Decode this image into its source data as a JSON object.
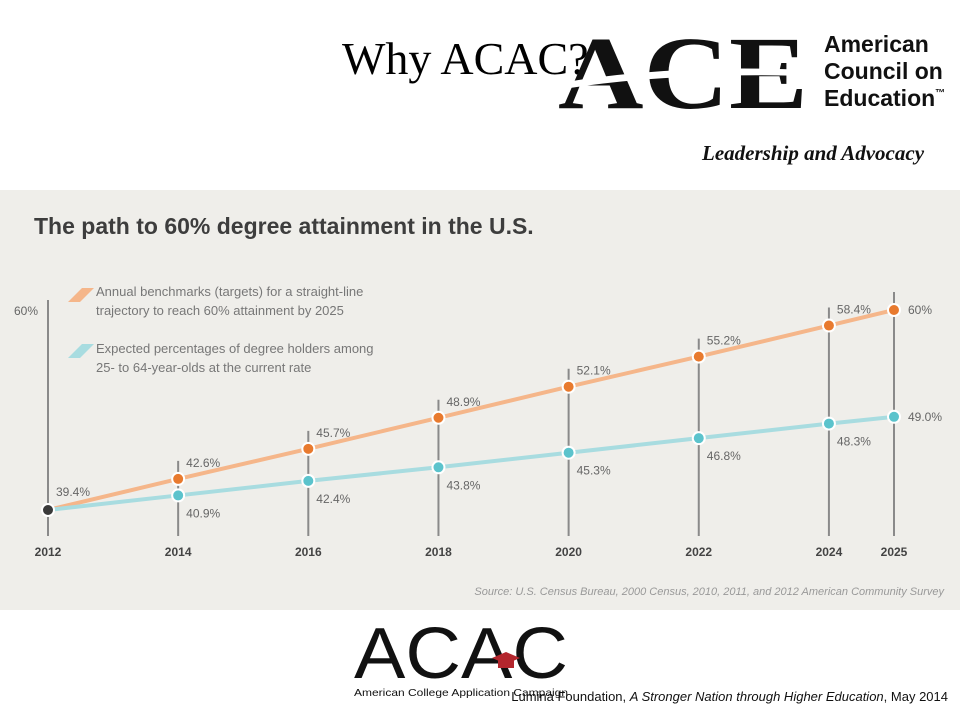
{
  "slide": {
    "title": "Why ACAC?",
    "citation_prefix": "Lumina Foundation, ",
    "citation_title": "A Stronger Nation through Higher Education",
    "citation_suffix": ", May 2014"
  },
  "ace_logo": {
    "mark": "ACE",
    "line1": "American",
    "line2": "Council on",
    "line3": "Education",
    "tm": "™",
    "tagline": "Leadership and Advocacy"
  },
  "acac_logo": {
    "mark": "ACAC",
    "name": "American College Application Campaign"
  },
  "colors": {
    "orange": "#f5b68a",
    "orange_dot": "#e87a2e",
    "blue": "#a8dce0",
    "blue_dot": "#5bc3cc",
    "axis_text": "#444444",
    "panel": "#efeeea"
  },
  "chart_data": {
    "type": "line",
    "title": "The path to 60% degree attainment in the U.S.",
    "y_top_label": "60%",
    "source": "Source: U.S. Census Bureau, 2000 Census, 2010, 2011, and 2012 American Community Survey",
    "x": [
      2012,
      2014,
      2016,
      2018,
      2020,
      2022,
      2024,
      2025
    ],
    "x_labels": [
      "2012",
      "2014",
      "2016",
      "2018",
      "2020",
      "2022",
      "2024",
      "2025"
    ],
    "xlim": [
      2012,
      2025
    ],
    "ylim": [
      39.4,
      60
    ],
    "start_value": 39.4,
    "start_label": "39.4%",
    "series": [
      {
        "name": "Annual benchmarks (targets) for a straight-line trajectory to reach 60% attainment by 2025",
        "legend_line1": "Annual benchmarks (targets) for a straight-line",
        "legend_line2": "trajectory to reach 60% attainment by 2025",
        "x": [
          2014,
          2016,
          2018,
          2020,
          2022,
          2024,
          2025
        ],
        "values": [
          42.6,
          45.7,
          48.9,
          52.1,
          55.2,
          58.4,
          60
        ],
        "labels": [
          "42.6%",
          "45.7%",
          "48.9%",
          "52.1%",
          "55.2%",
          "58.4%",
          "60%"
        ]
      },
      {
        "name": "Expected percentages of degree holders among 25- to 64-year-olds at the current rate",
        "legend_line1": "Expected percentages of degree holders among",
        "legend_line2": "25- to 64-year-olds at the current rate",
        "x": [
          2014,
          2016,
          2018,
          2020,
          2022,
          2024,
          2025
        ],
        "values": [
          40.9,
          42.4,
          43.8,
          45.3,
          46.8,
          48.3,
          49.0
        ],
        "labels": [
          "40.9%",
          "42.4%",
          "43.8%",
          "45.3%",
          "46.8%",
          "48.3%",
          "49.0%"
        ]
      }
    ],
    "legend_position": "top-left",
    "grid": false
  }
}
